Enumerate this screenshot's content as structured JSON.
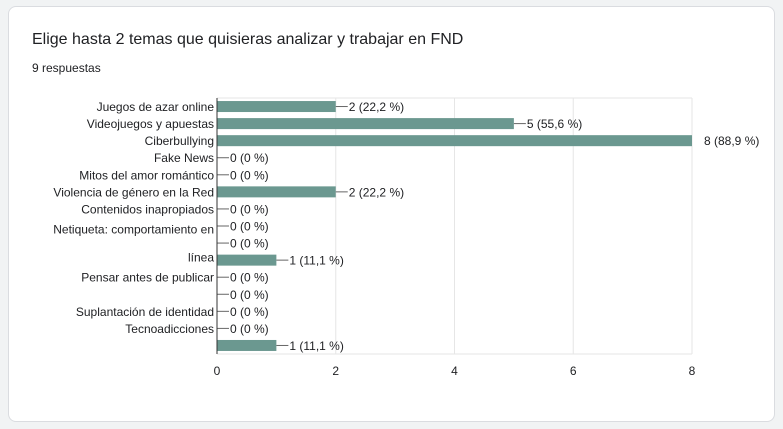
{
  "form": {
    "question": "Elige hasta 2 temas que quisieras analizar y trabajar en FND",
    "responses": "9 respuestas"
  },
  "colors": {
    "bar": "#6b9890",
    "grid": "#e6e6e6",
    "axis": "#333333",
    "text": "#202124"
  },
  "chart_data": {
    "type": "bar",
    "orientation": "horizontal",
    "title": "Elige hasta 2 temas que quisieras analizar y trabajar en FND",
    "xlabel": "",
    "ylabel": "",
    "xlim": [
      0,
      8
    ],
    "xticks": [
      "0",
      "2",
      "4",
      "6",
      "8"
    ],
    "grid": true,
    "legend": "none",
    "categories": [
      "Juegos de azar online",
      "Videojuegos y apuestas",
      "Ciberbullying",
      "Fake News",
      "Mitos del amor romántico",
      "Violencia de género en la Red",
      "Contenidos inapropiados",
      "",
      "",
      "",
      "Pensar antes de publicar",
      "",
      "Suplantación de identidad",
      "Tecnoadicciones",
      ""
    ],
    "wrapped_label": [
      "Netiqueta: comportamiento en",
      "línea"
    ],
    "values": [
      2,
      5,
      8,
      0,
      0,
      2,
      0,
      0,
      0,
      1,
      0,
      0,
      0,
      0,
      1
    ],
    "value_labels": [
      "2 (22,2 %)",
      "5 (55,6 %)",
      "8 (88,9 %)",
      "0 (0 %)",
      "0 (0 %)",
      "2 (22,2 %)",
      "0 (0 %)",
      "0 (0 %)",
      "0 (0 %)",
      "1 (11,1 %)",
      "0 (0 %)",
      "0 (0 %)",
      "0 (0 %)",
      "0 (0 %)",
      "1 (11,1 %)"
    ]
  }
}
